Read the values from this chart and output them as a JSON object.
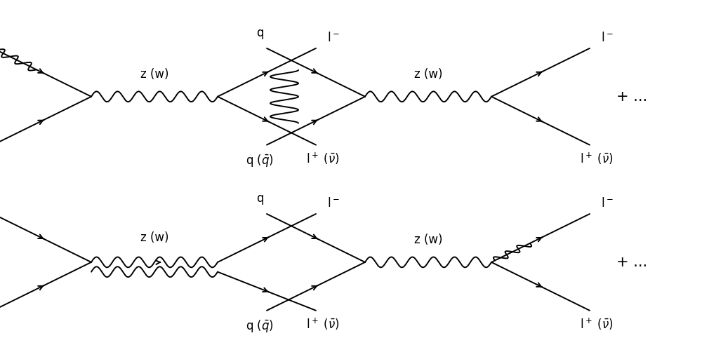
{
  "fig_width": 10.0,
  "fig_height": 4.92,
  "bg_color": "#ffffff",
  "lw": 1.4,
  "fs": 12,
  "diagrams": {
    "d1": {
      "lv": [
        0.13,
        0.72
      ],
      "rv": [
        0.31,
        0.72
      ]
    },
    "d2": {
      "lv": [
        0.52,
        0.72
      ],
      "rv": [
        0.7,
        0.72
      ]
    },
    "d3": {
      "lv": [
        0.13,
        0.24
      ],
      "rv": [
        0.31,
        0.24
      ]
    },
    "d4": {
      "lv": [
        0.52,
        0.24
      ],
      "rv": [
        0.7,
        0.24
      ]
    }
  },
  "arm": 0.14,
  "plus_1": [
    0.9,
    0.72
  ],
  "plus_2": [
    0.9,
    0.24
  ]
}
